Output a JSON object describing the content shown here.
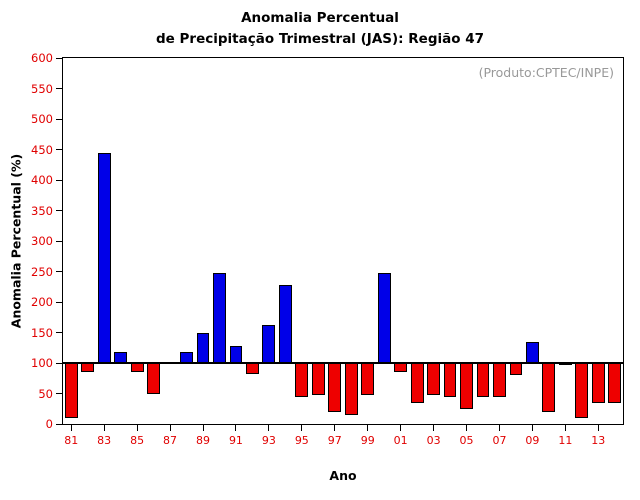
{
  "chart_data": {
    "type": "bar",
    "title_line1": "Anomalia Percentual",
    "title_line2": "de Precipitação Trimestral (JAS): Região 47",
    "ylabel": "Anomalia Percentual (%)",
    "xlabel": "Ano",
    "annotation": "(Produto:CPTEC/INPE)",
    "baseline": 100,
    "ylim": [
      0,
      600
    ],
    "ytick_step": 50,
    "legend": "none",
    "grid": false,
    "years": [
      "81",
      "82",
      "83",
      "84",
      "85",
      "86",
      "87",
      "88",
      "89",
      "90",
      "91",
      "92",
      "93",
      "94",
      "95",
      "96",
      "97",
      "98",
      "99",
      "00",
      "01",
      "02",
      "03",
      "04",
      "05",
      "06",
      "07",
      "08",
      "09",
      "10",
      "11",
      "12",
      "13",
      "14"
    ],
    "values": [
      10,
      85,
      445,
      118,
      85,
      50,
      100,
      118,
      150,
      247,
      128,
      82,
      162,
      228,
      45,
      48,
      20,
      15,
      48,
      248,
      85,
      35,
      48,
      45,
      25,
      45,
      45,
      80,
      135,
      20,
      97,
      10,
      35,
      35
    ],
    "xtick_labels": [
      "81",
      "83",
      "85",
      "87",
      "89",
      "91",
      "93",
      "95",
      "97",
      "99",
      "01",
      "03",
      "05",
      "07",
      "09",
      "11",
      "13"
    ],
    "xtick_indices": [
      0,
      2,
      4,
      6,
      8,
      10,
      12,
      14,
      16,
      18,
      20,
      22,
      24,
      26,
      28,
      30,
      32
    ],
    "colors": {
      "above": "#0000e8",
      "below": "#ee0000",
      "tick_label": "#e00000",
      "annotation": "#999999"
    }
  }
}
